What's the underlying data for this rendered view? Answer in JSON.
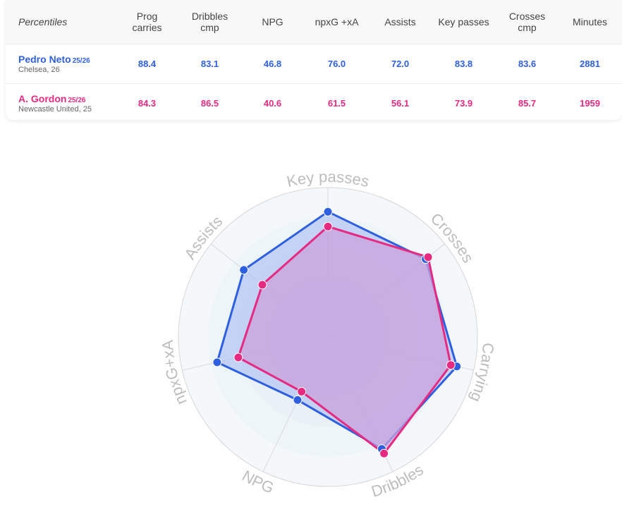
{
  "table": {
    "header_label": "Percentiles",
    "columns": [
      {
        "line1": "Prog",
        "line2": "carries"
      },
      {
        "line1": "Dribbles",
        "line2": "cmp"
      },
      {
        "line1": "NPG",
        "line2": ""
      },
      {
        "line1": "npxG +xA",
        "line2": ""
      },
      {
        "line1": "Assists",
        "line2": ""
      },
      {
        "line1": "Key passes",
        "line2": ""
      },
      {
        "line1": "Crosses",
        "line2": "cmp"
      },
      {
        "line1": "Minutes",
        "line2": ""
      }
    ],
    "players": [
      {
        "name": "Pedro Neto",
        "season": "25/26",
        "club": "Chelsea, 26",
        "values": [
          "88.4",
          "83.1",
          "46.8",
          "76.0",
          "72.0",
          "83.8",
          "83.6",
          "2881"
        ]
      },
      {
        "name": "A. Gordon",
        "season": "25/26",
        "club": "Newcastle United, 25",
        "values": [
          "84.3",
          "86.5",
          "40.6",
          "61.5",
          "56.1",
          "73.9",
          "85.7",
          "1959"
        ]
      }
    ]
  },
  "colors": {
    "player1": "#2e5fe0",
    "player2": "#e62a82",
    "player1_fill": "#a8bdf3",
    "player2_fill": "#c9a2db",
    "ring_bg": "#edf4f8",
    "ring_line": "#d6d6d6",
    "axis_label": "#bdbdbd"
  },
  "chart_data": {
    "type": "radar",
    "axes": [
      "Key passes",
      "Crosses",
      "Carrying",
      "Dribbles",
      "NPG",
      "npxG+xA",
      "Assists"
    ],
    "range": [
      0,
      100
    ],
    "rings": 5,
    "series": [
      {
        "name": "Pedro Neto",
        "values": [
          83.8,
          83.6,
          88.4,
          83.1,
          46.8,
          76.0,
          72.0
        ]
      },
      {
        "name": "A. Gordon",
        "values": [
          73.9,
          85.7,
          84.3,
          86.5,
          40.6,
          61.5,
          56.1
        ]
      }
    ]
  }
}
